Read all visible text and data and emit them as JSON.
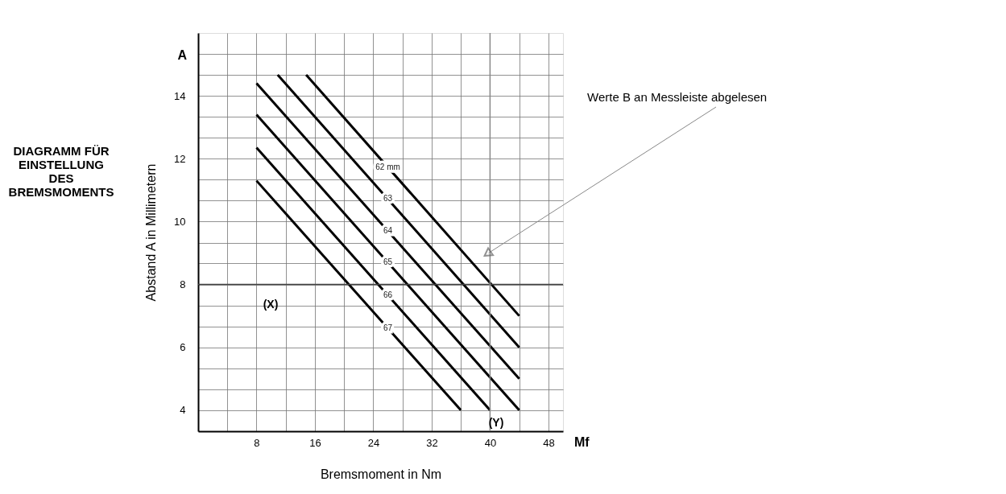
{
  "chart_data": {
    "type": "line",
    "title": "DIAGRAMM FÜR\nEINSTELLUNG\nDES\nBREMSMOMENTS",
    "xlabel": "Bremsmoment in Nm",
    "ylabel": "Abstand A  in Millimetern",
    "series": [
      {
        "name": "62 mm",
        "color": "#000000",
        "x": [
          14.8,
          44
        ],
        "values": [
          14.67,
          7
        ]
      },
      {
        "name": "63",
        "color": "#000000",
        "x": [
          10.9,
          44
        ],
        "values": [
          14.67,
          6
        ]
      },
      {
        "name": "64",
        "color": "#000000",
        "x": [
          8,
          44
        ],
        "values": [
          14.4,
          5
        ]
      },
      {
        "name": "65",
        "color": "#000000",
        "x": [
          8,
          44
        ],
        "values": [
          13.4,
          4
        ]
      },
      {
        "name": "66",
        "color": "#000000",
        "x": [
          8,
          40
        ],
        "values": [
          12.35,
          4
        ]
      },
      {
        "name": "67",
        "color": "#000000",
        "x": [
          8,
          36
        ],
        "values": [
          11.3,
          4
        ]
      }
    ],
    "xlim": [
      0,
      50
    ],
    "ylim": [
      3.33,
      16
    ],
    "xticks": [
      {
        "value": 4,
        "label": null
      },
      8,
      {
        "value": 12,
        "label": null
      },
      16,
      {
        "value": 20,
        "label": null
      },
      24,
      {
        "value": 28,
        "label": null
      },
      32,
      {
        "value": 36,
        "label": null
      },
      40,
      {
        "value": 44,
        "label": null
      },
      48
    ],
    "yticks": [
      4,
      {
        "value": 4.67,
        "label": null
      },
      {
        "value": 5.33,
        "label": null
      },
      6,
      {
        "value": 6.67,
        "label": null
      },
      {
        "value": 7.33,
        "label": null
      },
      8,
      {
        "value": 8.67,
        "label": null
      },
      {
        "value": 9.33,
        "label": null
      },
      10,
      {
        "value": 10.67,
        "label": null
      },
      {
        "value": 11.33,
        "label": null
      },
      12,
      {
        "value": 12.67,
        "label": null
      },
      {
        "value": 13.33,
        "label": null
      },
      14,
      {
        "value": 14.67,
        "label": null
      },
      {
        "value": 15.33,
        "label": null
      }
    ],
    "ref_lines": [
      {
        "axis": "y",
        "value": 8,
        "color": "#444444"
      },
      {
        "axis": "x",
        "value": 40,
        "color": "#888888"
      }
    ],
    "annotations": [
      "(X)",
      "(Y)",
      "A",
      "Mf",
      {
        "text": "Werte B an Messleiste abgelesen",
        "x": 39.8,
        "y": 9.0
      }
    ],
    "grid": true,
    "legend": false,
    "marker": "none",
    "line_style": "solid"
  }
}
